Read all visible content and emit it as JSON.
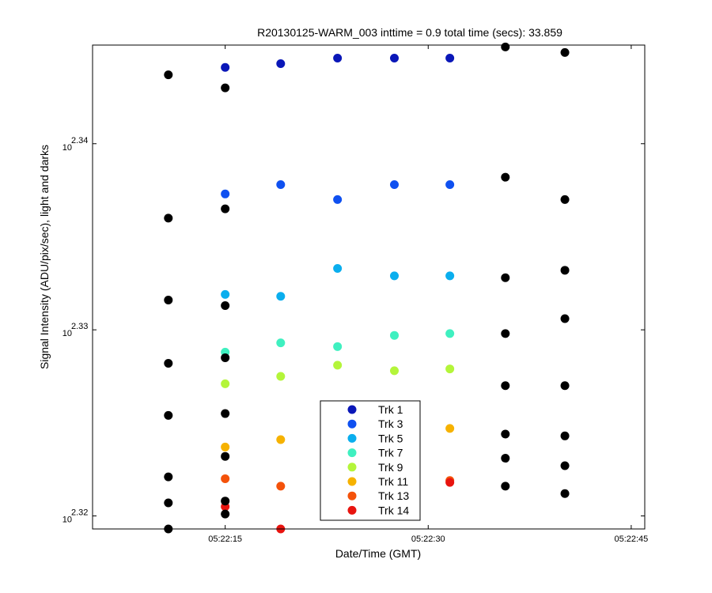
{
  "chart_data": {
    "type": "scatter",
    "title": "R20130125-WARM_003 inttime = 0.9 total time (secs): 33.859",
    "xlabel": "Date/Time (GMT)",
    "ylabel": "Signal Intensity (ADU/pix/sec), light and darks",
    "y_scale": "log",
    "x_ticks": [
      {
        "value": 15,
        "label": "05:22:15"
      },
      {
        "value": 30,
        "label": "05:22:30"
      },
      {
        "value": 45,
        "label": "05:22:45"
      }
    ],
    "y_ticks": [
      {
        "exp": 2.32,
        "base": "10",
        "exponent": "2.32"
      },
      {
        "exp": 2.33,
        "base": "10",
        "exponent": "2.33"
      },
      {
        "exp": 2.34,
        "base": "10",
        "exponent": "2.34"
      }
    ],
    "xlim": [
      5.2,
      46.0
    ],
    "ylim_exp": [
      2.3193,
      2.3453
    ],
    "grid": false,
    "legend_position": "bottom-center",
    "series": [
      {
        "name": "Trk 1",
        "color": "#0a17b8",
        "x": [
          15.0,
          19.1,
          23.3,
          27.5,
          31.6
        ],
        "y_exp": [
          2.3441,
          2.3443,
          2.3446,
          2.3446,
          2.3446
        ]
      },
      {
        "name": "Trk 3",
        "color": "#0f50f0",
        "x": [
          15.0,
          19.1,
          23.3,
          27.5,
          31.6
        ],
        "y_exp": [
          2.3373,
          2.3378,
          2.337,
          2.3378,
          2.3378
        ]
      },
      {
        "name": "Trk 5",
        "color": "#0aaeee",
        "x": [
          15.0,
          19.1,
          23.3,
          27.5,
          31.6
        ],
        "y_exp": [
          2.3319,
          2.3318,
          2.3333,
          2.3329,
          2.3329
        ]
      },
      {
        "name": "Trk 7",
        "color": "#3ff0c0",
        "x": [
          15.0,
          19.1,
          23.3,
          27.5,
          31.6
        ],
        "y_exp": [
          2.3288,
          2.3293,
          2.3291,
          2.3297,
          2.3298
        ]
      },
      {
        "name": "Trk 9",
        "color": "#b4f53a",
        "x": [
          15.0,
          19.1,
          23.3,
          27.5,
          31.6
        ],
        "y_exp": [
          2.3271,
          2.3275,
          2.3281,
          2.3278,
          2.3279
        ]
      },
      {
        "name": "Trk 11",
        "color": "#f6b200",
        "x": [
          15.0,
          19.1,
          23.3,
          27.5,
          31.6
        ],
        "y_exp": [
          2.3237,
          2.3241,
          2.3248,
          2.325,
          2.3247
        ]
      },
      {
        "name": "Trk 13",
        "color": "#f4520a",
        "x": [
          15.0,
          19.1,
          23.3,
          27.5,
          31.6
        ],
        "y_exp": [
          2.322,
          2.3216,
          2.3214,
          2.3226,
          2.3219
        ]
      },
      {
        "name": "Trk 14",
        "color": "#e8140f",
        "x": [
          15.0,
          19.1,
          23.3,
          27.5,
          31.6
        ],
        "y_exp": [
          2.3205,
          2.3193,
          2.3213,
          2.3213,
          2.3218
        ]
      },
      {
        "color": "#000000",
        "x": [
          10.8,
          10.8,
          10.8,
          10.8,
          10.8,
          10.8,
          10.8,
          10.8,
          15.0,
          15.0,
          15.0,
          15.0,
          15.0,
          15.0,
          15.0,
          15.0,
          35.7,
          35.7,
          35.7,
          35.7,
          35.7,
          35.7,
          35.7,
          35.7,
          40.1,
          40.1,
          40.1,
          40.1,
          40.1,
          40.1,
          40.1,
          40.1
        ],
        "y_exp": [
          2.3437,
          2.336,
          2.3316,
          2.3282,
          2.3254,
          2.3221,
          2.3207,
          2.3193,
          2.343,
          2.3365,
          2.3313,
          2.3285,
          2.3255,
          2.3232,
          2.3208,
          2.3201,
          2.3452,
          2.3382,
          2.3328,
          2.3298,
          2.327,
          2.3244,
          2.3231,
          2.3216,
          2.3449,
          2.337,
          2.3332,
          2.3306,
          2.327,
          2.3243,
          2.3227,
          2.3212
        ]
      }
    ]
  }
}
